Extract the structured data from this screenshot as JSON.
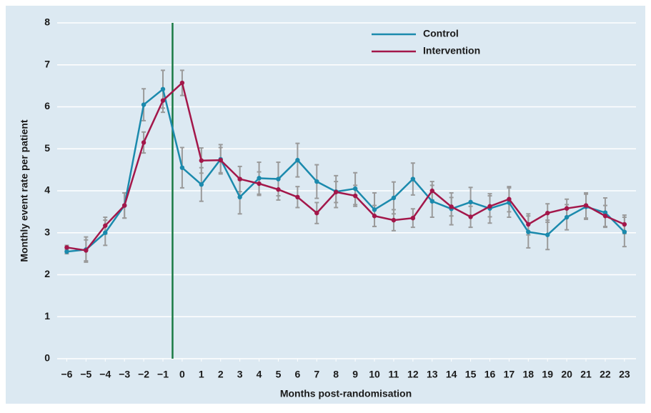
{
  "chart_data": {
    "type": "line",
    "x_label": "Months post-randomisation",
    "y_label": "Monthly event rate per patient",
    "x": [
      -6,
      -5,
      -4,
      -3,
      -2,
      -1,
      0,
      1,
      2,
      3,
      4,
      5,
      6,
      7,
      8,
      9,
      10,
      11,
      12,
      13,
      14,
      15,
      16,
      17,
      18,
      19,
      20,
      21,
      22,
      23
    ],
    "series": [
      {
        "name": "Control",
        "color": "#1b8aad",
        "values": [
          2.55,
          2.6,
          3.0,
          3.65,
          6.05,
          6.42,
          4.55,
          4.15,
          4.75,
          3.85,
          4.3,
          4.28,
          4.73,
          4.22,
          3.98,
          4.05,
          3.55,
          3.83,
          4.28,
          3.75,
          3.57,
          3.73,
          3.58,
          3.72,
          3.02,
          2.95,
          3.37,
          3.62,
          3.48,
          3.02
        ],
        "errors": [
          0.05,
          0.3,
          0.3,
          0.3,
          0.38,
          0.45,
          0.48,
          0.4,
          0.35,
          0.4,
          0.38,
          0.4,
          0.4,
          0.4,
          0.38,
          0.38,
          0.4,
          0.38,
          0.38,
          0.38,
          0.38,
          0.35,
          0.35,
          0.35,
          0.38,
          0.35,
          0.3,
          0.3,
          0.35,
          0.35
        ]
      },
      {
        "name": "Intervention",
        "color": "#a3174a",
        "values": [
          2.65,
          2.58,
          3.17,
          3.65,
          5.15,
          6.15,
          6.57,
          4.72,
          4.73,
          4.28,
          4.17,
          4.03,
          3.85,
          3.47,
          3.97,
          3.88,
          3.4,
          3.3,
          3.35,
          4.0,
          3.62,
          3.38,
          3.63,
          3.8,
          3.2,
          3.47,
          3.58,
          3.65,
          3.4,
          3.2
        ],
        "errors": [
          0.05,
          0.25,
          0.2,
          0.3,
          0.25,
          0.28,
          0.3,
          0.3,
          0.3,
          0.3,
          0.28,
          0.25,
          0.25,
          0.25,
          0.25,
          0.25,
          0.25,
          0.25,
          0.22,
          0.22,
          0.22,
          0.25,
          0.25,
          0.3,
          0.25,
          0.22,
          0.22,
          0.3,
          0.25,
          0.22
        ]
      }
    ],
    "error_bar_color": "#9a9a9a",
    "vline": {
      "x": -0.5,
      "color": "#1a7a45"
    },
    "xlim": [
      -6.5,
      23.6
    ],
    "ylim": [
      0,
      8
    ],
    "xticks": [
      {
        "value": -6,
        "label": "−6"
      },
      {
        "value": -5,
        "label": "−5"
      },
      {
        "value": -4,
        "label": "−4"
      },
      {
        "value": -3,
        "label": "−3"
      },
      {
        "value": -2,
        "label": "−2"
      },
      {
        "value": -1,
        "label": "−1"
      },
      0,
      1,
      2,
      3,
      4,
      5,
      6,
      7,
      8,
      9,
      10,
      11,
      12,
      13,
      14,
      15,
      16,
      17,
      18,
      19,
      20,
      21,
      22,
      23
    ],
    "yticks": [
      0,
      1,
      2,
      3,
      4,
      5,
      6,
      7,
      8
    ],
    "grid": true,
    "legend": "upper right",
    "background": "#dce9f2"
  }
}
